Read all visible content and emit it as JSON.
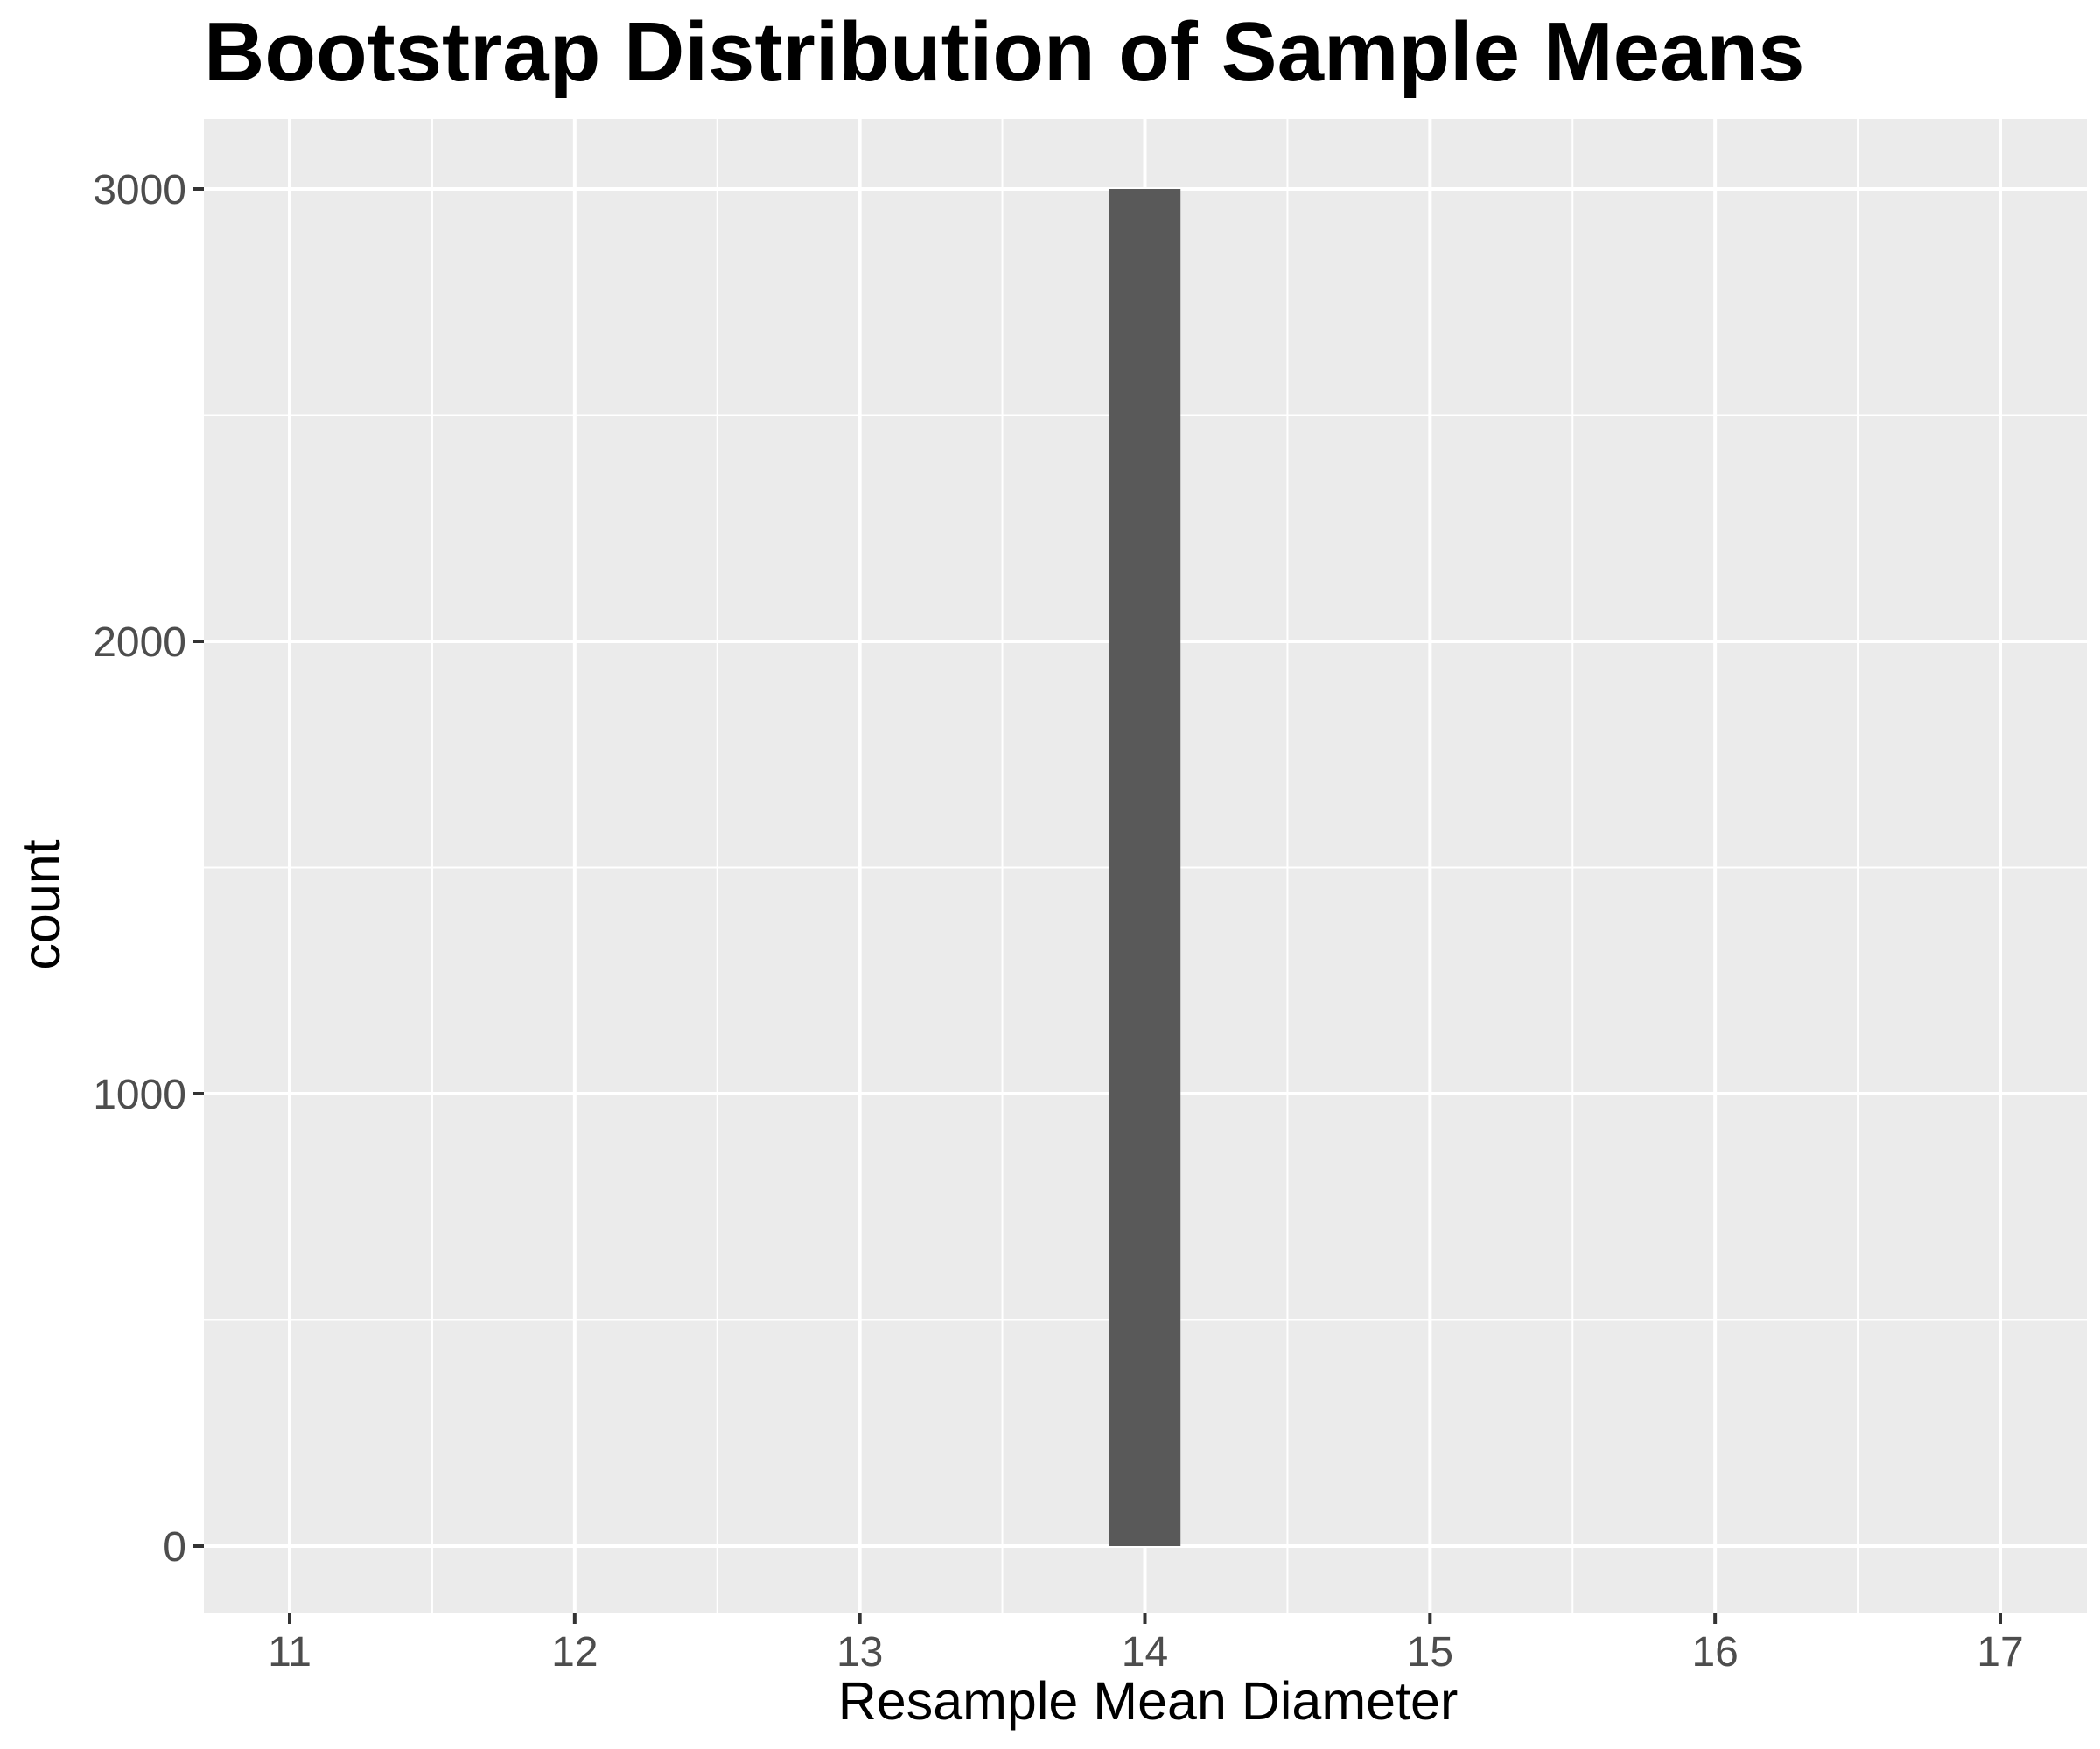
{
  "chart_data": {
    "type": "bar",
    "title": "Bootstrap Distribution of Sample Means",
    "xlabel": "Resample Mean Diameter",
    "ylabel": "count",
    "xlim": [
      10.7,
      17.3
    ],
    "ylim": [
      -150,
      3150
    ],
    "x_ticks": [
      11,
      12,
      13,
      14,
      15,
      16,
      17
    ],
    "y_ticks": [
      0,
      1000,
      2000,
      3000
    ],
    "bins": [
      {
        "x_start": 13.875,
        "x_end": 14.125,
        "count": 3000
      }
    ],
    "grid": true,
    "legend": "none",
    "colors": {
      "panel_background": "#ebebeb",
      "grid_line": "#ffffff",
      "bar_fill": "#595959",
      "tick_mark": "#333333"
    }
  }
}
